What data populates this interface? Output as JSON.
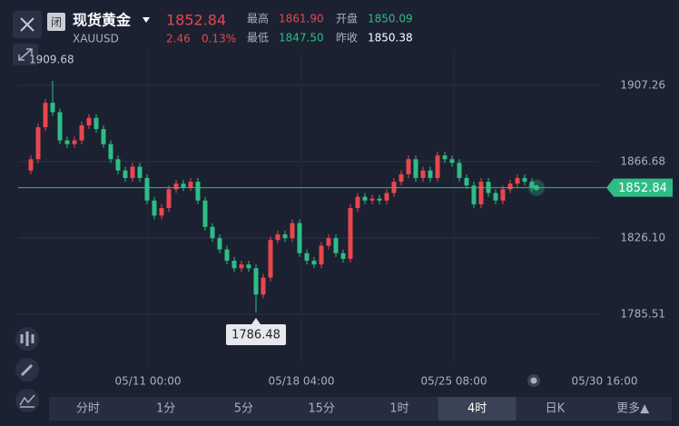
{
  "header": {
    "status": "闭",
    "name": "现货黄金",
    "symbol": "XAUUSD",
    "price": "1852.84",
    "change": "2.46",
    "change_pct": "0.13%",
    "stats": [
      {
        "label": "最高",
        "value": "1861.90"
      },
      {
        "label": "开盘",
        "value": "1850.09"
      },
      {
        "label": "最低",
        "value": "1847.50"
      },
      {
        "label": "昨收",
        "value": "1850.38"
      }
    ]
  },
  "chart_data": {
    "type": "candlestick",
    "up_color": "#e8474d",
    "down_color": "#2ebd85",
    "grid": true,
    "ylim": [
      1759.42,
      1926.1
    ],
    "yticks": [
      1907.26,
      1866.68,
      {
        "value": 1826.1,
        "label": "1826.10"
      },
      1785.51
    ],
    "xlim": [
      -1.75,
      83.25
    ],
    "xticks": [
      {
        "value": 16.125,
        "label": "05/11 00:00"
      },
      {
        "value": 37.25,
        "label": "05/18 04:00"
      },
      {
        "value": 58.25,
        "label": "05/25 08:00"
      },
      {
        "value": 79,
        "label": "05/30 16:00"
      }
    ],
    "open": [
      1862,
      1868,
      1885,
      1898,
      1893,
      1878,
      1876,
      1878,
      1886,
      1890,
      1884,
      1876,
      1868,
      1862,
      1858,
      1864,
      1858,
      1846,
      1838,
      1842,
      1852,
      1855,
      1853,
      1856,
      1846,
      1832,
      1826,
      1820,
      1814,
      1810,
      1812,
      1810,
      1796,
      1805,
      1825,
      1828,
      1826,
      1834,
      1818,
      1814,
      1812,
      1822,
      1826,
      1818,
      1815,
      1842,
      1848,
      1846,
      1847,
      1846,
      1850,
      1856,
      1860,
      1868,
      1858,
      1862,
      1858,
      1870,
      1868,
      1866,
      1858,
      1854,
      1844,
      1856,
      1850,
      1846,
      1852,
      1855,
      1858,
      1856
    ],
    "high": [
      1870,
      1887,
      1900,
      1909.68,
      1895,
      1880,
      1880,
      1888,
      1892,
      1892,
      1886,
      1878,
      1870,
      1864,
      1866,
      1866,
      1860,
      1848,
      1844,
      1854,
      1857,
      1857,
      1858,
      1858,
      1848,
      1834,
      1828,
      1822,
      1816,
      1814,
      1814,
      1812,
      1807,
      1827,
      1830,
      1830,
      1836,
      1836,
      1820,
      1816,
      1824,
      1828,
      1828,
      1820,
      1844,
      1850,
      1850,
      1849,
      1849,
      1852,
      1858,
      1862,
      1870,
      1870,
      1864,
      1864,
      1872,
      1872,
      1870,
      1868,
      1860,
      1856,
      1858,
      1858,
      1852,
      1854,
      1857,
      1860,
      1860,
      1858
    ],
    "low": [
      1860,
      1866,
      1883,
      1891,
      1876,
      1874,
      1874,
      1876,
      1884,
      1882,
      1874,
      1866,
      1860,
      1856,
      1856,
      1856,
      1844,
      1836,
      1836,
      1840,
      1850,
      1851,
      1851,
      1844,
      1830,
      1824,
      1818,
      1812,
      1808,
      1808,
      1808,
      1786.48,
      1794,
      1803,
      1823,
      1824,
      1824,
      1816,
      1812,
      1810,
      1810,
      1820,
      1816,
      1813,
      1813,
      1840,
      1844,
      1844,
      1844,
      1844,
      1848,
      1854,
      1858,
      1856,
      1856,
      1856,
      1856,
      1866,
      1864,
      1856,
      1852,
      1842,
      1842,
      1848,
      1844,
      1844,
      1850,
      1853,
      1854,
      1850.84
    ],
    "close": [
      1868,
      1885,
      1898,
      1893,
      1878,
      1876,
      1878,
      1886,
      1890,
      1884,
      1876,
      1868,
      1862,
      1858,
      1864,
      1858,
      1846,
      1838,
      1842,
      1852,
      1855,
      1853,
      1856,
      1846,
      1832,
      1826,
      1820,
      1814,
      1810,
      1812,
      1810,
      1796,
      1805,
      1825,
      1828,
      1826,
      1834,
      1818,
      1814,
      1812,
      1822,
      1826,
      1818,
      1815,
      1842,
      1848,
      1846,
      1847,
      1846,
      1850,
      1856,
      1860,
      1868,
      1858,
      1862,
      1858,
      1870,
      1868,
      1866,
      1858,
      1854,
      1844,
      1856,
      1850,
      1846,
      1852,
      1855,
      1858,
      1856,
      1852.84
    ]
  },
  "tabs": [
    "分时",
    "1分",
    "5分",
    "15分",
    "1时",
    "4时",
    "日K",
    "更多▲"
  ],
  "active_tab": 5
}
